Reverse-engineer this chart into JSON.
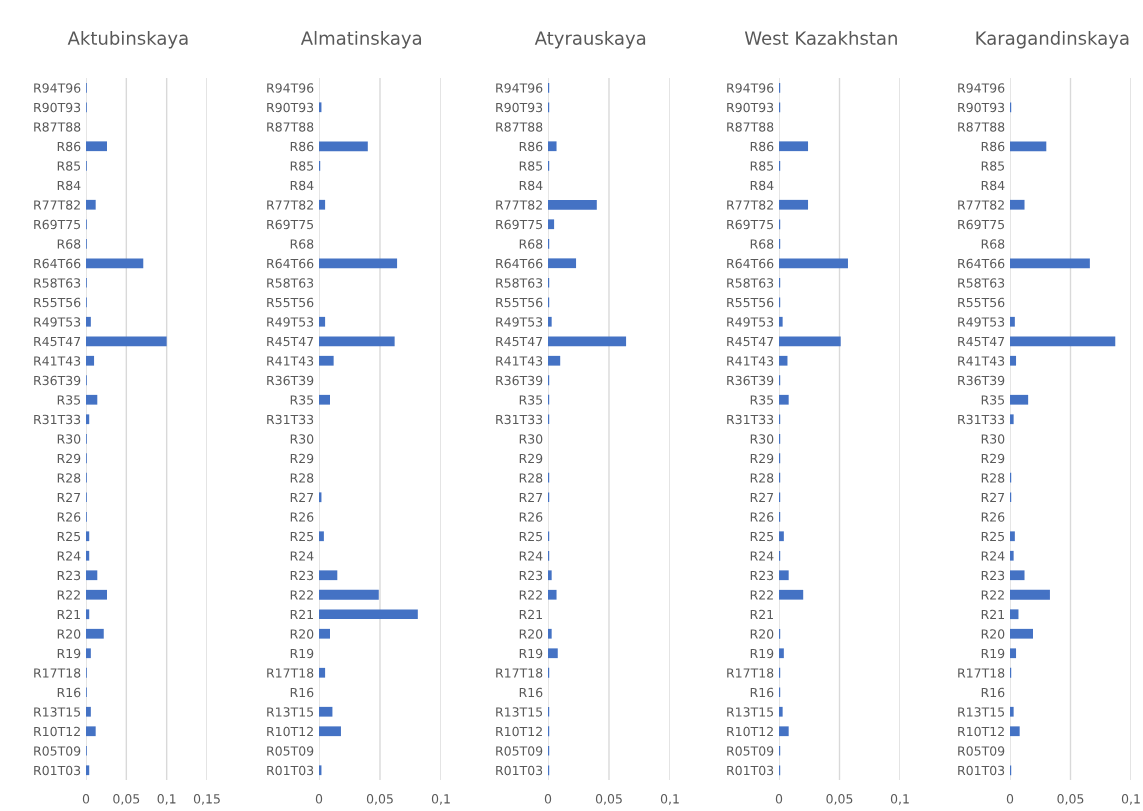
{
  "chart_data": [
    {
      "type": "bar",
      "orientation": "horizontal",
      "title": "Aktubinskaya",
      "categories": [
        "R94T96",
        "R90T93",
        "R87T88",
        "R86",
        "R85",
        "R84",
        "R77T82",
        "R69T75",
        "R68",
        "R64T66",
        "R58T63",
        "R55T56",
        "R49T53",
        "R45T47",
        "R41T43",
        "R36T39",
        "R35",
        "R31T33",
        "R30",
        "R29",
        "R28",
        "R27",
        "R26",
        "R25",
        "R24",
        "R23",
        "R22",
        "R21",
        "R20",
        "R19",
        "R17T18",
        "R16",
        "R13T15",
        "R10T12",
        "R05T09",
        "R01T03"
      ],
      "color": "#4472c4",
      "values": [
        0.001,
        0.001,
        0,
        0.026,
        0.001,
        0,
        0.012,
        0.001,
        0.001,
        0.071,
        0.001,
        0.001,
        0.006,
        0.1,
        0.01,
        0.001,
        0.014,
        0.004,
        0.001,
        0.001,
        0.001,
        0.001,
        0.001,
        0.004,
        0.004,
        0.014,
        0.026,
        0.004,
        0.022,
        0.006,
        0.001,
        0.001,
        0.006,
        0.012,
        0.001,
        0.004
      ],
      "xlim": [
        0,
        0.15
      ],
      "xticks": [
        0,
        {
          "value": 0.05,
          "label": "0,05"
        },
        {
          "value": 0.1,
          "label": "0,1"
        },
        {
          "value": 0.15,
          "label": "0,15"
        }
      ],
      "grid": "x"
    },
    {
      "type": "bar",
      "orientation": "horizontal",
      "title": "Almatinskaya",
      "categories": [
        "R94T96",
        "R90T93",
        "R87T88",
        "R86",
        "R85",
        "R84",
        "R77T82",
        "R69T75",
        "R68",
        "R64T66",
        "R58T63",
        "R55T56",
        "R49T53",
        "R45T47",
        "R41T43",
        "R36T39",
        "R35",
        "R31T33",
        "R30",
        "R29",
        "R28",
        "R27",
        "R26",
        "R25",
        "R24",
        "R23",
        "R22",
        "R21",
        "R20",
        "R19",
        "R17T18",
        "R16",
        "R13T15",
        "R10T12",
        "R05T09",
        "R01T03"
      ],
      "color": "#4472c4",
      "values": [
        0,
        0.002,
        0,
        0.04,
        0.001,
        0,
        0.005,
        0,
        0,
        0.064,
        0,
        0,
        0.005,
        0.062,
        0.012,
        0,
        0.009,
        0,
        0,
        0,
        0,
        0.002,
        0,
        0.004,
        0,
        0.015,
        0.049,
        0.081,
        0.009,
        0,
        0.005,
        0,
        0.011,
        0.018,
        0,
        0.002
      ],
      "xlim": [
        0,
        0.1
      ],
      "xticks": [
        0,
        {
          "value": 0.05,
          "label": "0,05"
        },
        {
          "value": 0.1,
          "label": "0,1"
        }
      ],
      "grid": "x"
    },
    {
      "type": "bar",
      "orientation": "horizontal",
      "title": "Atyrauskaya",
      "categories": [
        "R94T96",
        "R90T93",
        "R87T88",
        "R86",
        "R85",
        "R84",
        "R77T82",
        "R69T75",
        "R68",
        "R64T66",
        "R58T63",
        "R55T56",
        "R49T53",
        "R45T47",
        "R41T43",
        "R36T39",
        "R35",
        "R31T33",
        "R30",
        "R29",
        "R28",
        "R27",
        "R26",
        "R25",
        "R24",
        "R23",
        "R22",
        "R21",
        "R20",
        "R19",
        "R17T18",
        "R16",
        "R13T15",
        "R10T12",
        "R05T09",
        "R01T03"
      ],
      "color": "#4472c4",
      "values": [
        0.001,
        0.001,
        0,
        0.007,
        0.001,
        0,
        0.04,
        0.005,
        0.001,
        0.023,
        0.001,
        0.001,
        0.003,
        0.064,
        0.01,
        0.001,
        0.001,
        0.001,
        0,
        0,
        0.001,
        0.001,
        0,
        0.001,
        0.001,
        0.003,
        0.007,
        0,
        0.003,
        0.008,
        0.001,
        0,
        0.001,
        0.001,
        0.001,
        0.001
      ],
      "xlim": [
        0,
        0.1
      ],
      "xticks": [
        0,
        {
          "value": 0.05,
          "label": "0,05"
        },
        {
          "value": 0.1,
          "label": "0,1"
        }
      ],
      "grid": "x"
    },
    {
      "type": "bar",
      "orientation": "horizontal",
      "title": "West Kazakhstan",
      "categories": [
        "R94T96",
        "R90T93",
        "R87T88",
        "R86",
        "R85",
        "R84",
        "R77T82",
        "R69T75",
        "R68",
        "R64T66",
        "R58T63",
        "R55T56",
        "R49T53",
        "R45T47",
        "R41T43",
        "R36T39",
        "R35",
        "R31T33",
        "R30",
        "R29",
        "R28",
        "R27",
        "R26",
        "R25",
        "R24",
        "R23",
        "R22",
        "R21",
        "R20",
        "R19",
        "R17T18",
        "R16",
        "R13T15",
        "R10T12",
        "R05T09",
        "R01T03"
      ],
      "color": "#4472c4",
      "values": [
        0.001,
        0.001,
        0,
        0.024,
        0.001,
        0,
        0.024,
        0.001,
        0.001,
        0.057,
        0.001,
        0.001,
        0.003,
        0.051,
        0.007,
        0.001,
        0.008,
        0.001,
        0.001,
        0.001,
        0.001,
        0.001,
        0.001,
        0.004,
        0.001,
        0.008,
        0.02,
        0,
        0.001,
        0.004,
        0.001,
        0.001,
        0.003,
        0.008,
        0.001,
        0.001
      ],
      "xlim": [
        0,
        0.1
      ],
      "xticks": [
        0,
        {
          "value": 0.05,
          "label": "0,05"
        },
        {
          "value": 0.1,
          "label": "0,1"
        }
      ],
      "grid": "x"
    },
    {
      "type": "bar",
      "orientation": "horizontal",
      "title": "Karagandinskaya",
      "categories": [
        "R94T96",
        "R90T93",
        "R87T88",
        "R86",
        "R85",
        "R84",
        "R77T82",
        "R69T75",
        "R68",
        "R64T66",
        "R58T63",
        "R55T56",
        "R49T53",
        "R45T47",
        "R41T43",
        "R36T39",
        "R35",
        "R31T33",
        "R30",
        "R29",
        "R28",
        "R27",
        "R26",
        "R25",
        "R24",
        "R23",
        "R22",
        "R21",
        "R20",
        "R19",
        "R17T18",
        "R16",
        "R13T15",
        "R10T12",
        "R05T09",
        "R01T03"
      ],
      "color": "#4472c4",
      "values": [
        0,
        0.001,
        0,
        0.03,
        0,
        0,
        0.012,
        0,
        0,
        0.066,
        0,
        0,
        0.004,
        0.087,
        0.005,
        0,
        0.015,
        0.003,
        0,
        0,
        0.001,
        0.001,
        0,
        0.004,
        0.003,
        0.012,
        0.033,
        0.007,
        0.019,
        0.005,
        0.001,
        0,
        0.003,
        0.008,
        0,
        0.001
      ],
      "xlim": [
        0,
        0.1
      ],
      "xticks": [
        0,
        {
          "value": 0.05,
          "label": "0,05"
        },
        {
          "value": 0.1,
          "label": "0,1"
        }
      ],
      "grid": "x"
    }
  ]
}
